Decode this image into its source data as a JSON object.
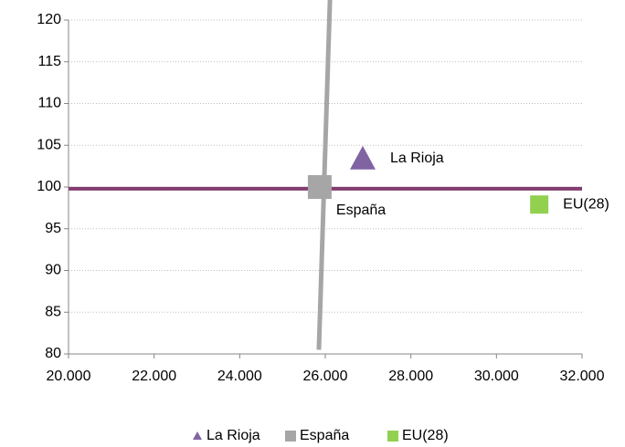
{
  "chart_data": {
    "type": "scatter",
    "xlim": [
      20000,
      32000
    ],
    "xticks": [
      {
        "value": 20000,
        "label": "20.000"
      },
      {
        "value": 22000,
        "label": "22.000"
      },
      {
        "value": 24000,
        "label": "24.000"
      },
      {
        "value": 26000,
        "label": "26.000"
      },
      {
        "value": 28000,
        "label": "28.000"
      },
      {
        "value": 30000,
        "label": "30.000"
      },
      {
        "value": 32000,
        "label": "32.000"
      }
    ],
    "ylim": [
      80,
      120
    ],
    "yticks": [
      80,
      85,
      90,
      95,
      100,
      105,
      110,
      115,
      120
    ],
    "grid": true,
    "legend": "bottom",
    "series": [
      {
        "name": "La Rioja",
        "color": "#8064a2",
        "marker": "triangle",
        "x": [
          26875
        ],
        "values": [
          103.4
        ]
      },
      {
        "name": "España",
        "color": "#a6a6a6",
        "marker": "square",
        "x": [
          25870
        ],
        "values": [
          100
        ]
      },
      {
        "name": "EU(28)",
        "color": "#92d050",
        "marker": "square",
        "x": [
          31000
        ],
        "values": [
          97.9
        ]
      }
    ],
    "reference_lines": [
      {
        "color": "#833c6f",
        "x": [
          20000,
          32000
        ],
        "values": [
          99.8,
          99.8
        ]
      },
      {
        "color": "#a6a6a6",
        "x": [
          25850,
          26120
        ],
        "values": [
          80.5,
          124.2
        ]
      }
    ]
  }
}
